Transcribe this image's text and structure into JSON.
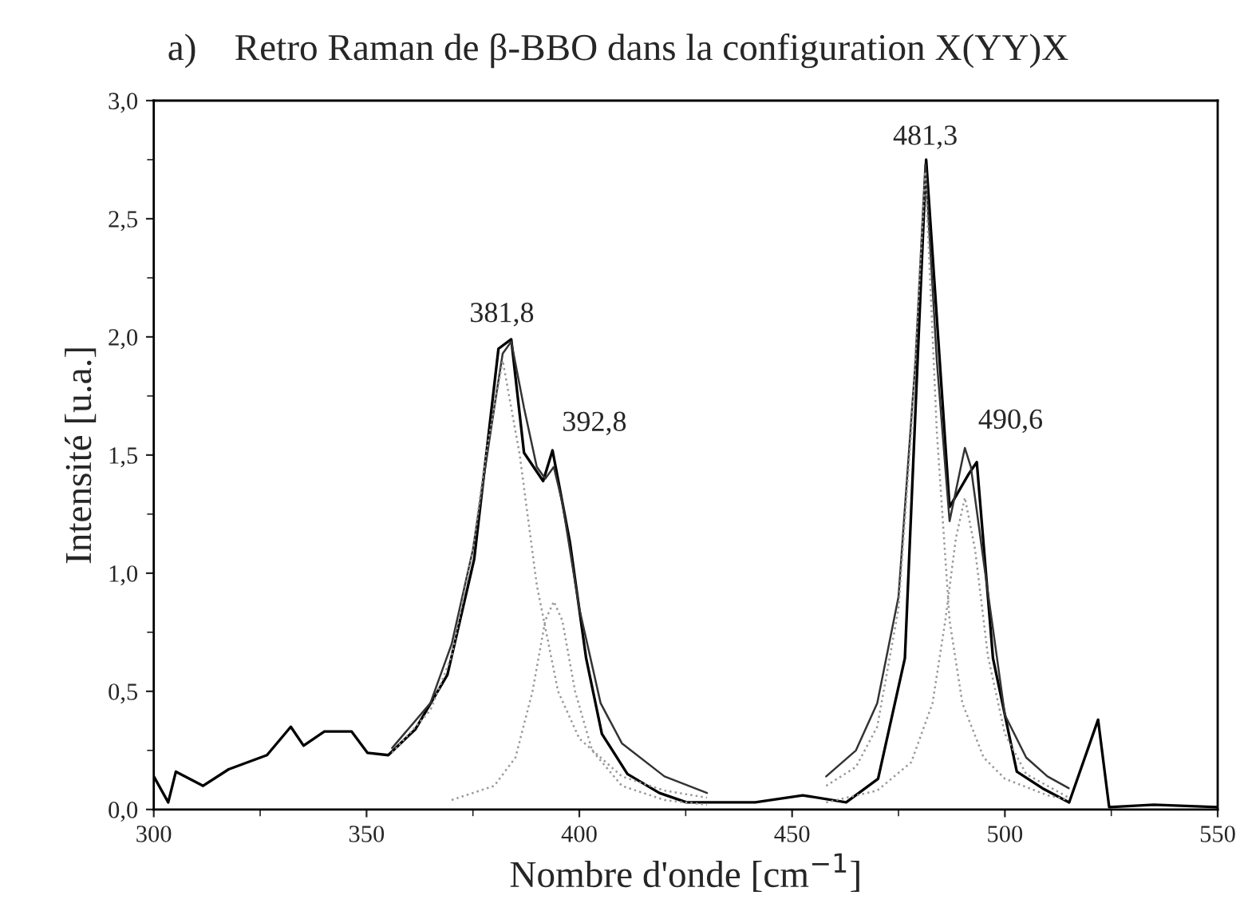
{
  "chart_data": {
    "type": "line",
    "title": "a)    Retro Raman de β-BBO dans la configuration X(YY)X",
    "xlabel": "Nombre d'onde [cm$^{−1}$]",
    "ylabel": "Intensité [u.a.]",
    "xlim": [
      300,
      550
    ],
    "ylim": [
      0,
      3
    ],
    "xticks": [
      300,
      350,
      400,
      450,
      500,
      550
    ],
    "yticks": [
      {
        "value": 0,
        "label": "0,0"
      },
      {
        "value": 0.5,
        "label": "0,5"
      },
      {
        "value": 1.0,
        "label": "1,0"
      },
      {
        "value": 1.5,
        "label": "1,5"
      },
      {
        "value": 2.0,
        "label": "2,0"
      },
      {
        "value": 2.5,
        "label": "2,5"
      },
      {
        "value": 3.0,
        "label": "3,0"
      }
    ],
    "grid": false,
    "marker": "none",
    "series": [
      {
        "color": "#000000",
        "line_style": "solid",
        "x": [
          300,
          303.4,
          305.2,
          311.6,
          317.6,
          326.6,
          332.2,
          335.2,
          340.1,
          346.5,
          350.2,
          355.1,
          361.5,
          369,
          375.3,
          381,
          384,
          387,
          391.5,
          393.7,
          397.8,
          401.6,
          405.3,
          411.3,
          418.8,
          425.2,
          429,
          441.3,
          452.5,
          462.7,
          470.2,
          476.5,
          481.5,
          487,
          491.5,
          493.4,
          497.2,
          502.8,
          508.8,
          515.1,
          521.9,
          524.5,
          535,
          550
        ],
        "values": [
          0.14,
          0.03,
          0.16,
          0.1,
          0.17,
          0.23,
          0.35,
          0.27,
          0.33,
          0.33,
          0.24,
          0.23,
          0.34,
          0.57,
          1.06,
          1.95,
          1.99,
          1.51,
          1.39,
          1.52,
          1.13,
          0.64,
          0.32,
          0.15,
          0.07,
          0.03,
          0.03,
          0.03,
          0.06,
          0.03,
          0.13,
          0.64,
          2.75,
          1.28,
          1.42,
          1.47,
          0.64,
          0.16,
          0.09,
          0.03,
          0.38,
          0.01,
          0.02,
          0.01
        ]
      },
      {
        "color": "#333333",
        "line_style": "solid",
        "x": [
          356,
          365,
          370,
          375,
          380,
          382,
          384,
          387,
          390,
          392,
          394,
          396,
          400,
          405,
          410,
          420,
          430,
          440,
          458,
          465,
          470,
          475,
          479,
          481.3,
          484,
          487,
          490,
          490.6,
          492,
          495,
          500,
          505,
          510,
          515
        ],
        "values": [
          0.26,
          0.45,
          0.7,
          1.1,
          1.7,
          1.93,
          1.98,
          1.7,
          1.45,
          1.4,
          1.45,
          1.3,
          0.85,
          0.45,
          0.28,
          0.14,
          0.07,
          null,
          0.14,
          0.25,
          0.45,
          0.9,
          1.9,
          2.73,
          1.9,
          1.22,
          1.48,
          1.53,
          1.45,
          1.05,
          0.4,
          0.22,
          0.14,
          0.09
        ]
      },
      {
        "color": "#999999",
        "line_style": "dotted",
        "x": [
          356,
          365,
          370,
          375,
          378,
          382,
          386,
          390,
          395,
          400,
          410,
          420,
          430
        ],
        "values": [
          0.24,
          0.42,
          0.65,
          1.1,
          1.5,
          1.9,
          1.5,
          0.95,
          0.5,
          0.3,
          0.14,
          0.08,
          0.05
        ]
      },
      {
        "color": "#999999",
        "line_style": "dotted",
        "x": [
          370,
          380,
          385,
          389,
          392,
          394,
          396,
          399,
          403,
          410,
          420,
          430
        ],
        "values": [
          0.04,
          0.1,
          0.22,
          0.5,
          0.8,
          0.88,
          0.8,
          0.5,
          0.25,
          0.1,
          0.04,
          0.02
        ]
      },
      {
        "color": "#999999",
        "line_style": "dotted",
        "x": [
          458,
          465,
          470,
          475,
          478,
          481.3,
          484,
          487,
          490,
          495,
          500,
          510,
          515
        ],
        "values": [
          0.1,
          0.18,
          0.35,
          0.85,
          1.6,
          2.7,
          1.6,
          0.8,
          0.45,
          0.22,
          0.13,
          0.06,
          0.04
        ]
      },
      {
        "color": "#999999",
        "line_style": "dotted",
        "x": [
          458,
          470,
          478,
          483,
          486,
          488.5,
          490.6,
          493,
          496,
          500,
          505,
          515
        ],
        "values": [
          0.03,
          0.08,
          0.2,
          0.45,
          0.8,
          1.15,
          1.32,
          1.1,
          0.65,
          0.32,
          0.15,
          0.05
        ]
      }
    ],
    "annotations": [
      {
        "text": "381,8",
        "x": 381.8,
        "y": 2.0
      },
      {
        "text": "392,8",
        "x": 392.8,
        "y": 1.52
      },
      {
        "text": "481,3",
        "x": 481.3,
        "y": 2.75
      },
      {
        "text": "490,6",
        "x": 490.6,
        "y": 1.53
      }
    ]
  }
}
